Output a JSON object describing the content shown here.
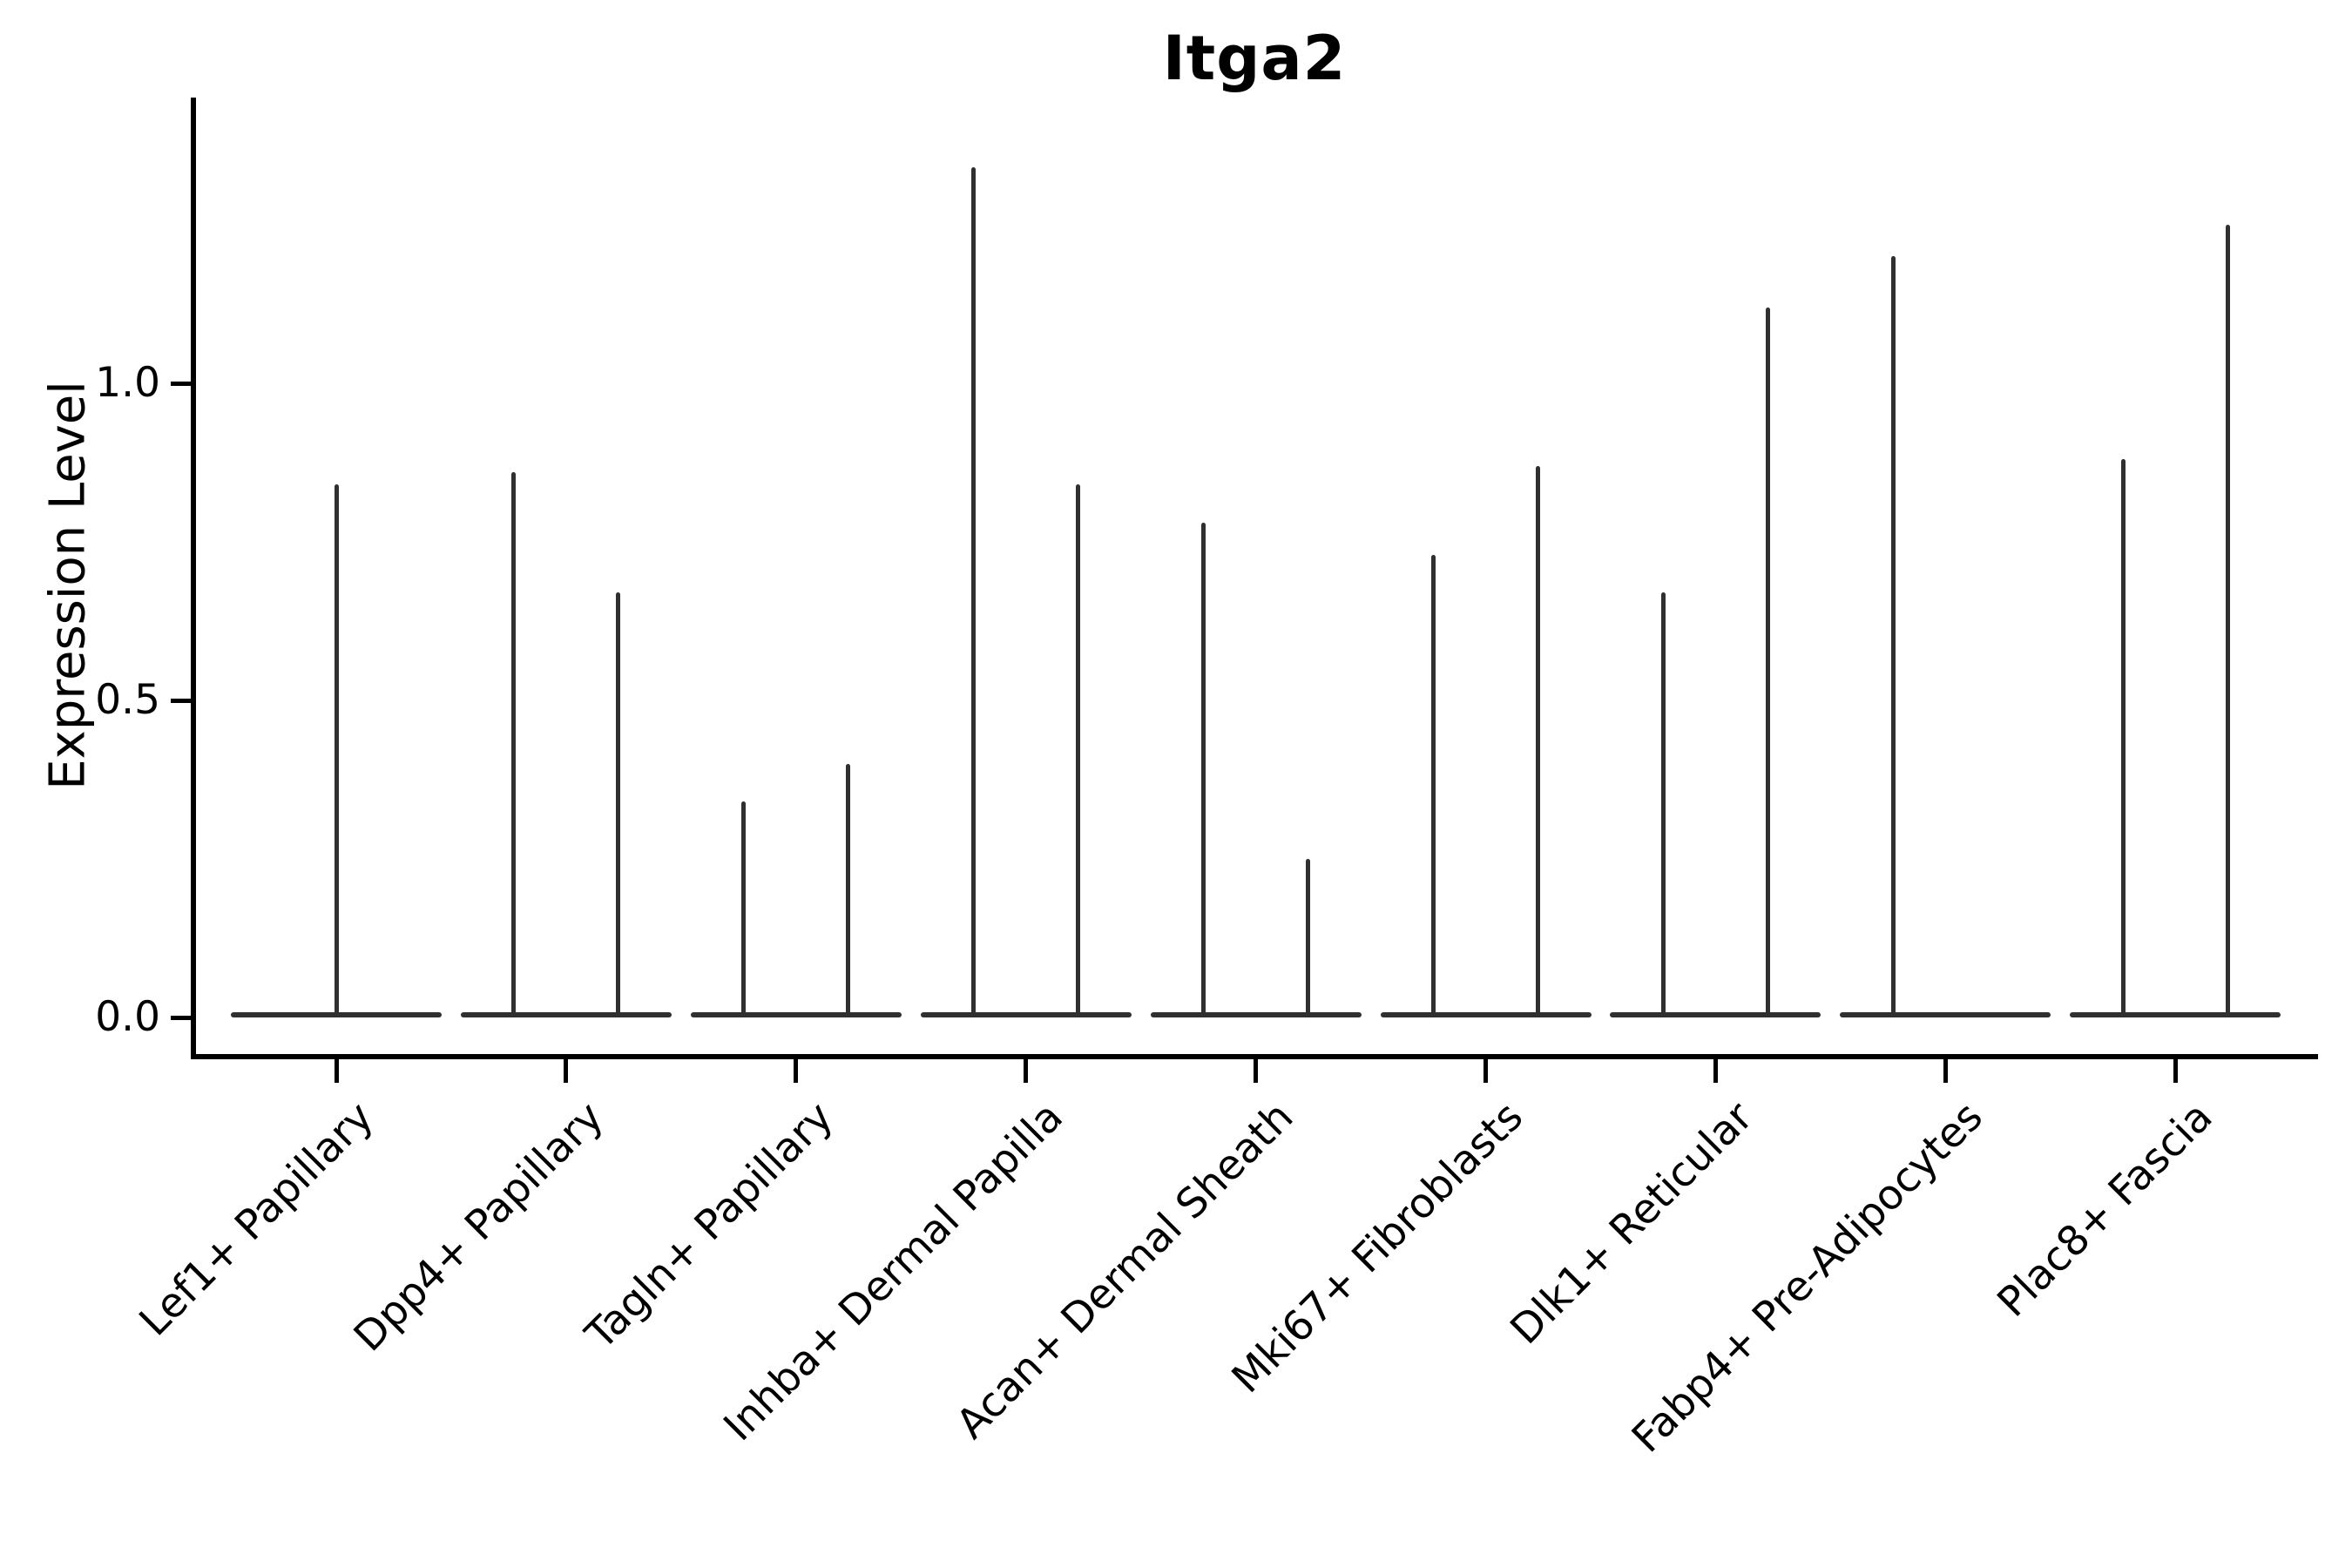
{
  "chart_data": {
    "type": "violin",
    "title": "Itga2",
    "ylabel": "Expression Level",
    "xlabel": "",
    "ylim": [
      0.0,
      1.44
    ],
    "grid": false,
    "legend_position": "none",
    "yticks": [
      {
        "value": 0.0,
        "label": "0.0"
      },
      {
        "value": 0.5,
        "label": "0.5"
      },
      {
        "value": 1.0,
        "label": "1.0"
      }
    ],
    "baseline_value": 0.0,
    "description": "Needle-thin violins: a flat density mass at expression 0 for every group, with a thin tail spike rising to the group's maximum expression value.",
    "categories": [
      {
        "label": "Lef1+ Papillary",
        "violins": [
          {
            "position": "center",
            "max_expression": 0.84
          }
        ]
      },
      {
        "label": "Dpp4+ Papillary",
        "violins": [
          {
            "position": "left",
            "max_expression": 0.86
          },
          {
            "position": "right",
            "max_expression": 0.67
          }
        ]
      },
      {
        "label": "Tagln+ Papillary",
        "violins": [
          {
            "position": "left",
            "max_expression": 0.34
          },
          {
            "position": "right",
            "max_expression": 0.4
          }
        ]
      },
      {
        "label": "Inhba+ Dermal Papilla",
        "violins": [
          {
            "position": "left",
            "max_expression": 1.34
          },
          {
            "position": "right",
            "max_expression": 0.84
          }
        ]
      },
      {
        "label": "Acan+ Dermal Sheath",
        "violins": [
          {
            "position": "left",
            "max_expression": 0.78
          },
          {
            "position": "right",
            "max_expression": 0.25
          }
        ]
      },
      {
        "label": "Mki67+ Fibroblasts",
        "violins": [
          {
            "position": "left",
            "max_expression": 0.73
          },
          {
            "position": "right",
            "max_expression": 0.87
          }
        ]
      },
      {
        "label": "Dlk1+ Reticular",
        "violins": [
          {
            "position": "left",
            "max_expression": 0.67
          },
          {
            "position": "right",
            "max_expression": 1.12
          }
        ]
      },
      {
        "label": "Fabp4+ Pre-Adipocytes",
        "violins": [
          {
            "position": "left",
            "max_expression": 1.2
          }
        ]
      },
      {
        "label": "Plac8+ Fascia",
        "violins": [
          {
            "position": "left",
            "max_expression": 0.88
          },
          {
            "position": "right",
            "max_expression": 1.25
          }
        ]
      }
    ],
    "colors": {
      "violin": "#303030",
      "axis": "#000000",
      "text": "#000000"
    }
  }
}
